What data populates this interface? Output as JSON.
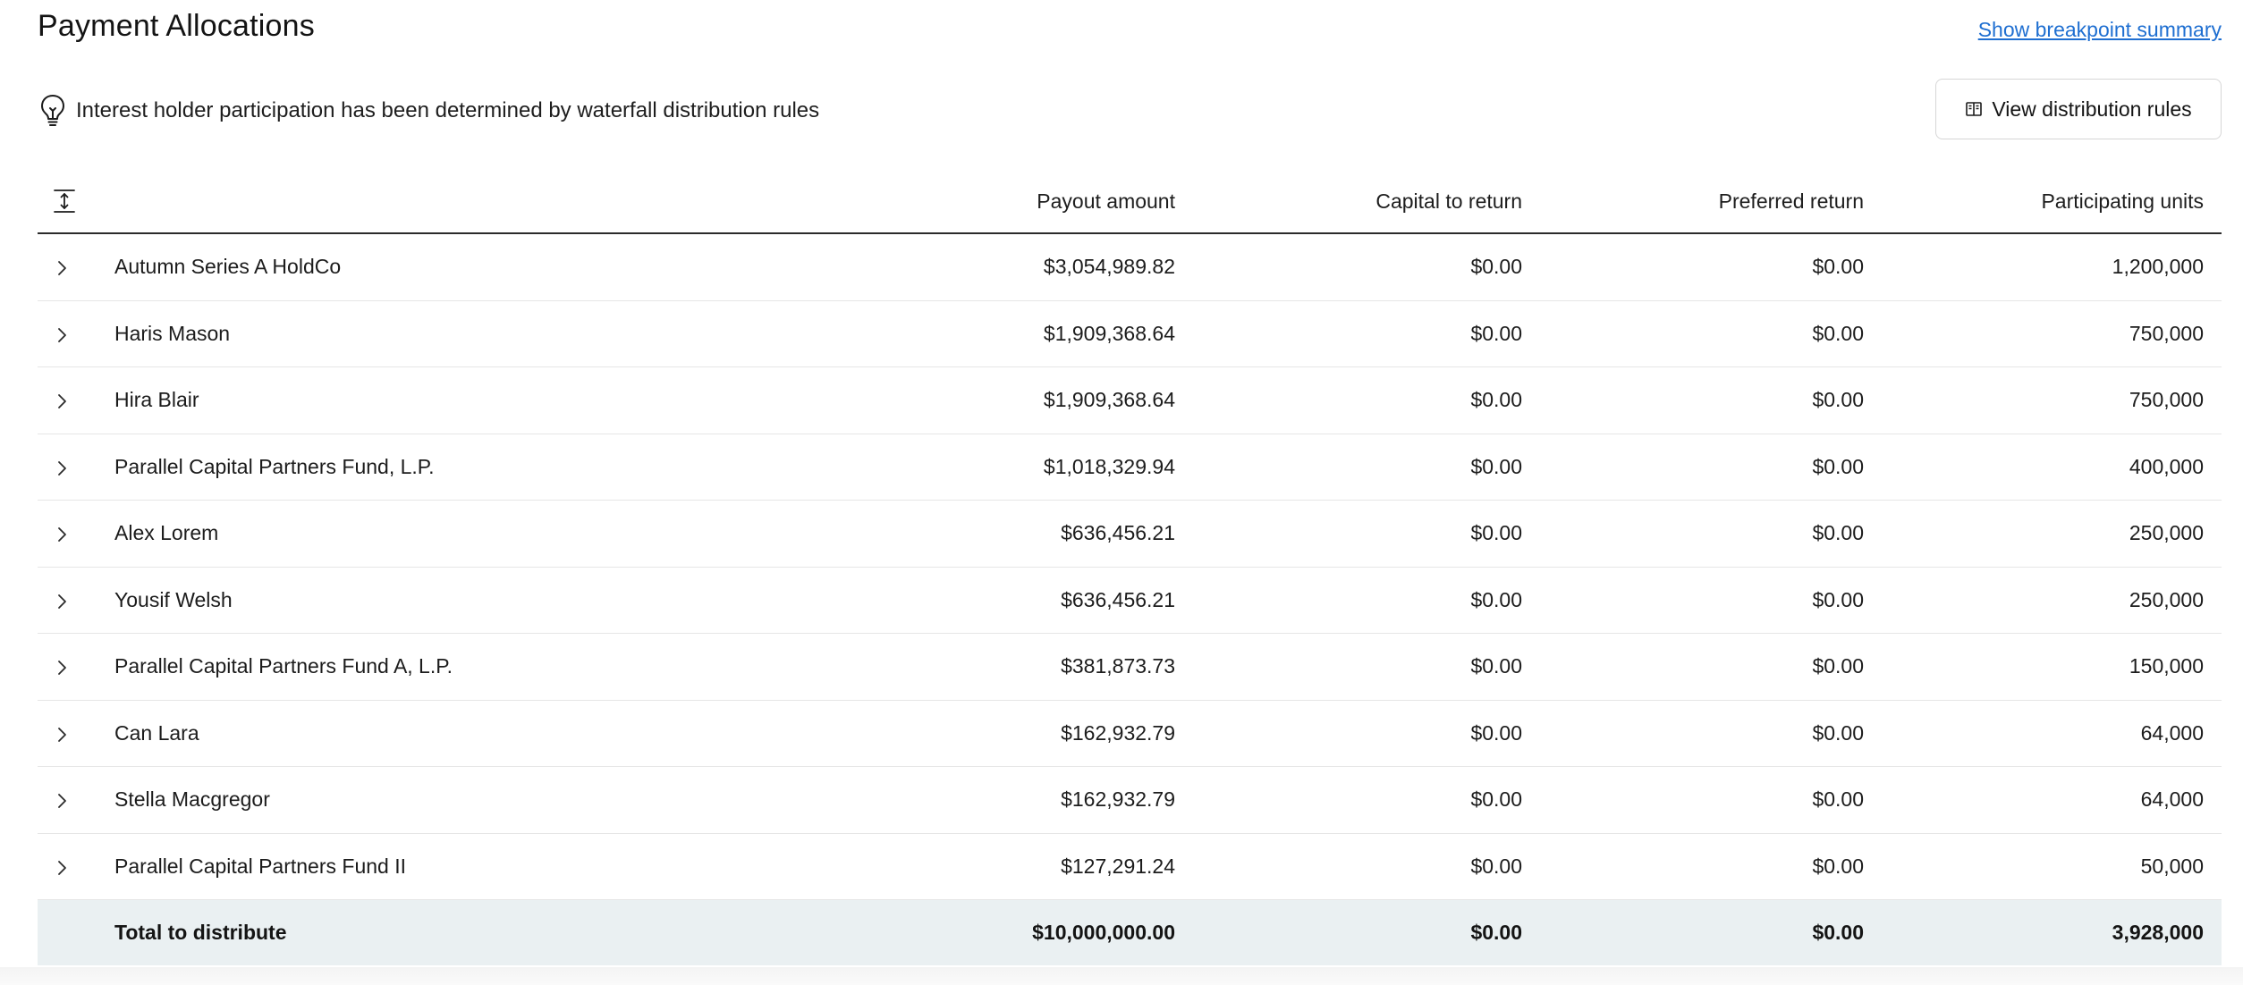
{
  "header": {
    "title": "Payment Allocations",
    "breakpoint_link": "Show breakpoint summary"
  },
  "info": {
    "icon": "lightbulb-icon",
    "text": "Interest holder participation has been determined by waterfall distribution rules",
    "rules_button_label": "View distribution rules",
    "rules_button_icon": "book-icon"
  },
  "table": {
    "columns": {
      "payout": "Payout amount",
      "capital": "Capital to return",
      "preferred": "Preferred return",
      "units": "Participating units"
    },
    "rows": [
      {
        "name": "Autumn Series A HoldCo",
        "payout": "$3,054,989.82",
        "capital": "$0.00",
        "preferred": "$0.00",
        "units": "1,200,000"
      },
      {
        "name": "Haris Mason",
        "payout": "$1,909,368.64",
        "capital": "$0.00",
        "preferred": "$0.00",
        "units": "750,000"
      },
      {
        "name": "Hira Blair",
        "payout": "$1,909,368.64",
        "capital": "$0.00",
        "preferred": "$0.00",
        "units": "750,000"
      },
      {
        "name": "Parallel Capital Partners Fund, L.P.",
        "payout": "$1,018,329.94",
        "capital": "$0.00",
        "preferred": "$0.00",
        "units": "400,000"
      },
      {
        "name": "Alex Lorem",
        "payout": "$636,456.21",
        "capital": "$0.00",
        "preferred": "$0.00",
        "units": "250,000"
      },
      {
        "name": "Yousif Welsh",
        "payout": "$636,456.21",
        "capital": "$0.00",
        "preferred": "$0.00",
        "units": "250,000"
      },
      {
        "name": "Parallel Capital Partners Fund A, L.P.",
        "payout": "$381,873.73",
        "capital": "$0.00",
        "preferred": "$0.00",
        "units": "150,000"
      },
      {
        "name": "Can Lara",
        "payout": "$162,932.79",
        "capital": "$0.00",
        "preferred": "$0.00",
        "units": "64,000"
      },
      {
        "name": "Stella Macgregor",
        "payout": "$162,932.79",
        "capital": "$0.00",
        "preferred": "$0.00",
        "units": "64,000"
      },
      {
        "name": "Parallel Capital Partners Fund II",
        "payout": "$127,291.24",
        "capital": "$0.00",
        "preferred": "$0.00",
        "units": "50,000"
      }
    ],
    "total": {
      "label": "Total to distribute",
      "payout": "$10,000,000.00",
      "capital": "$0.00",
      "preferred": "$0.00",
      "units": "3,928,000"
    }
  },
  "colors": {
    "link": "#1f6fd1",
    "total_row_bg": "#eaf0f2",
    "header_rule": "#2b2b2b",
    "row_rule": "#e6e6e6"
  }
}
